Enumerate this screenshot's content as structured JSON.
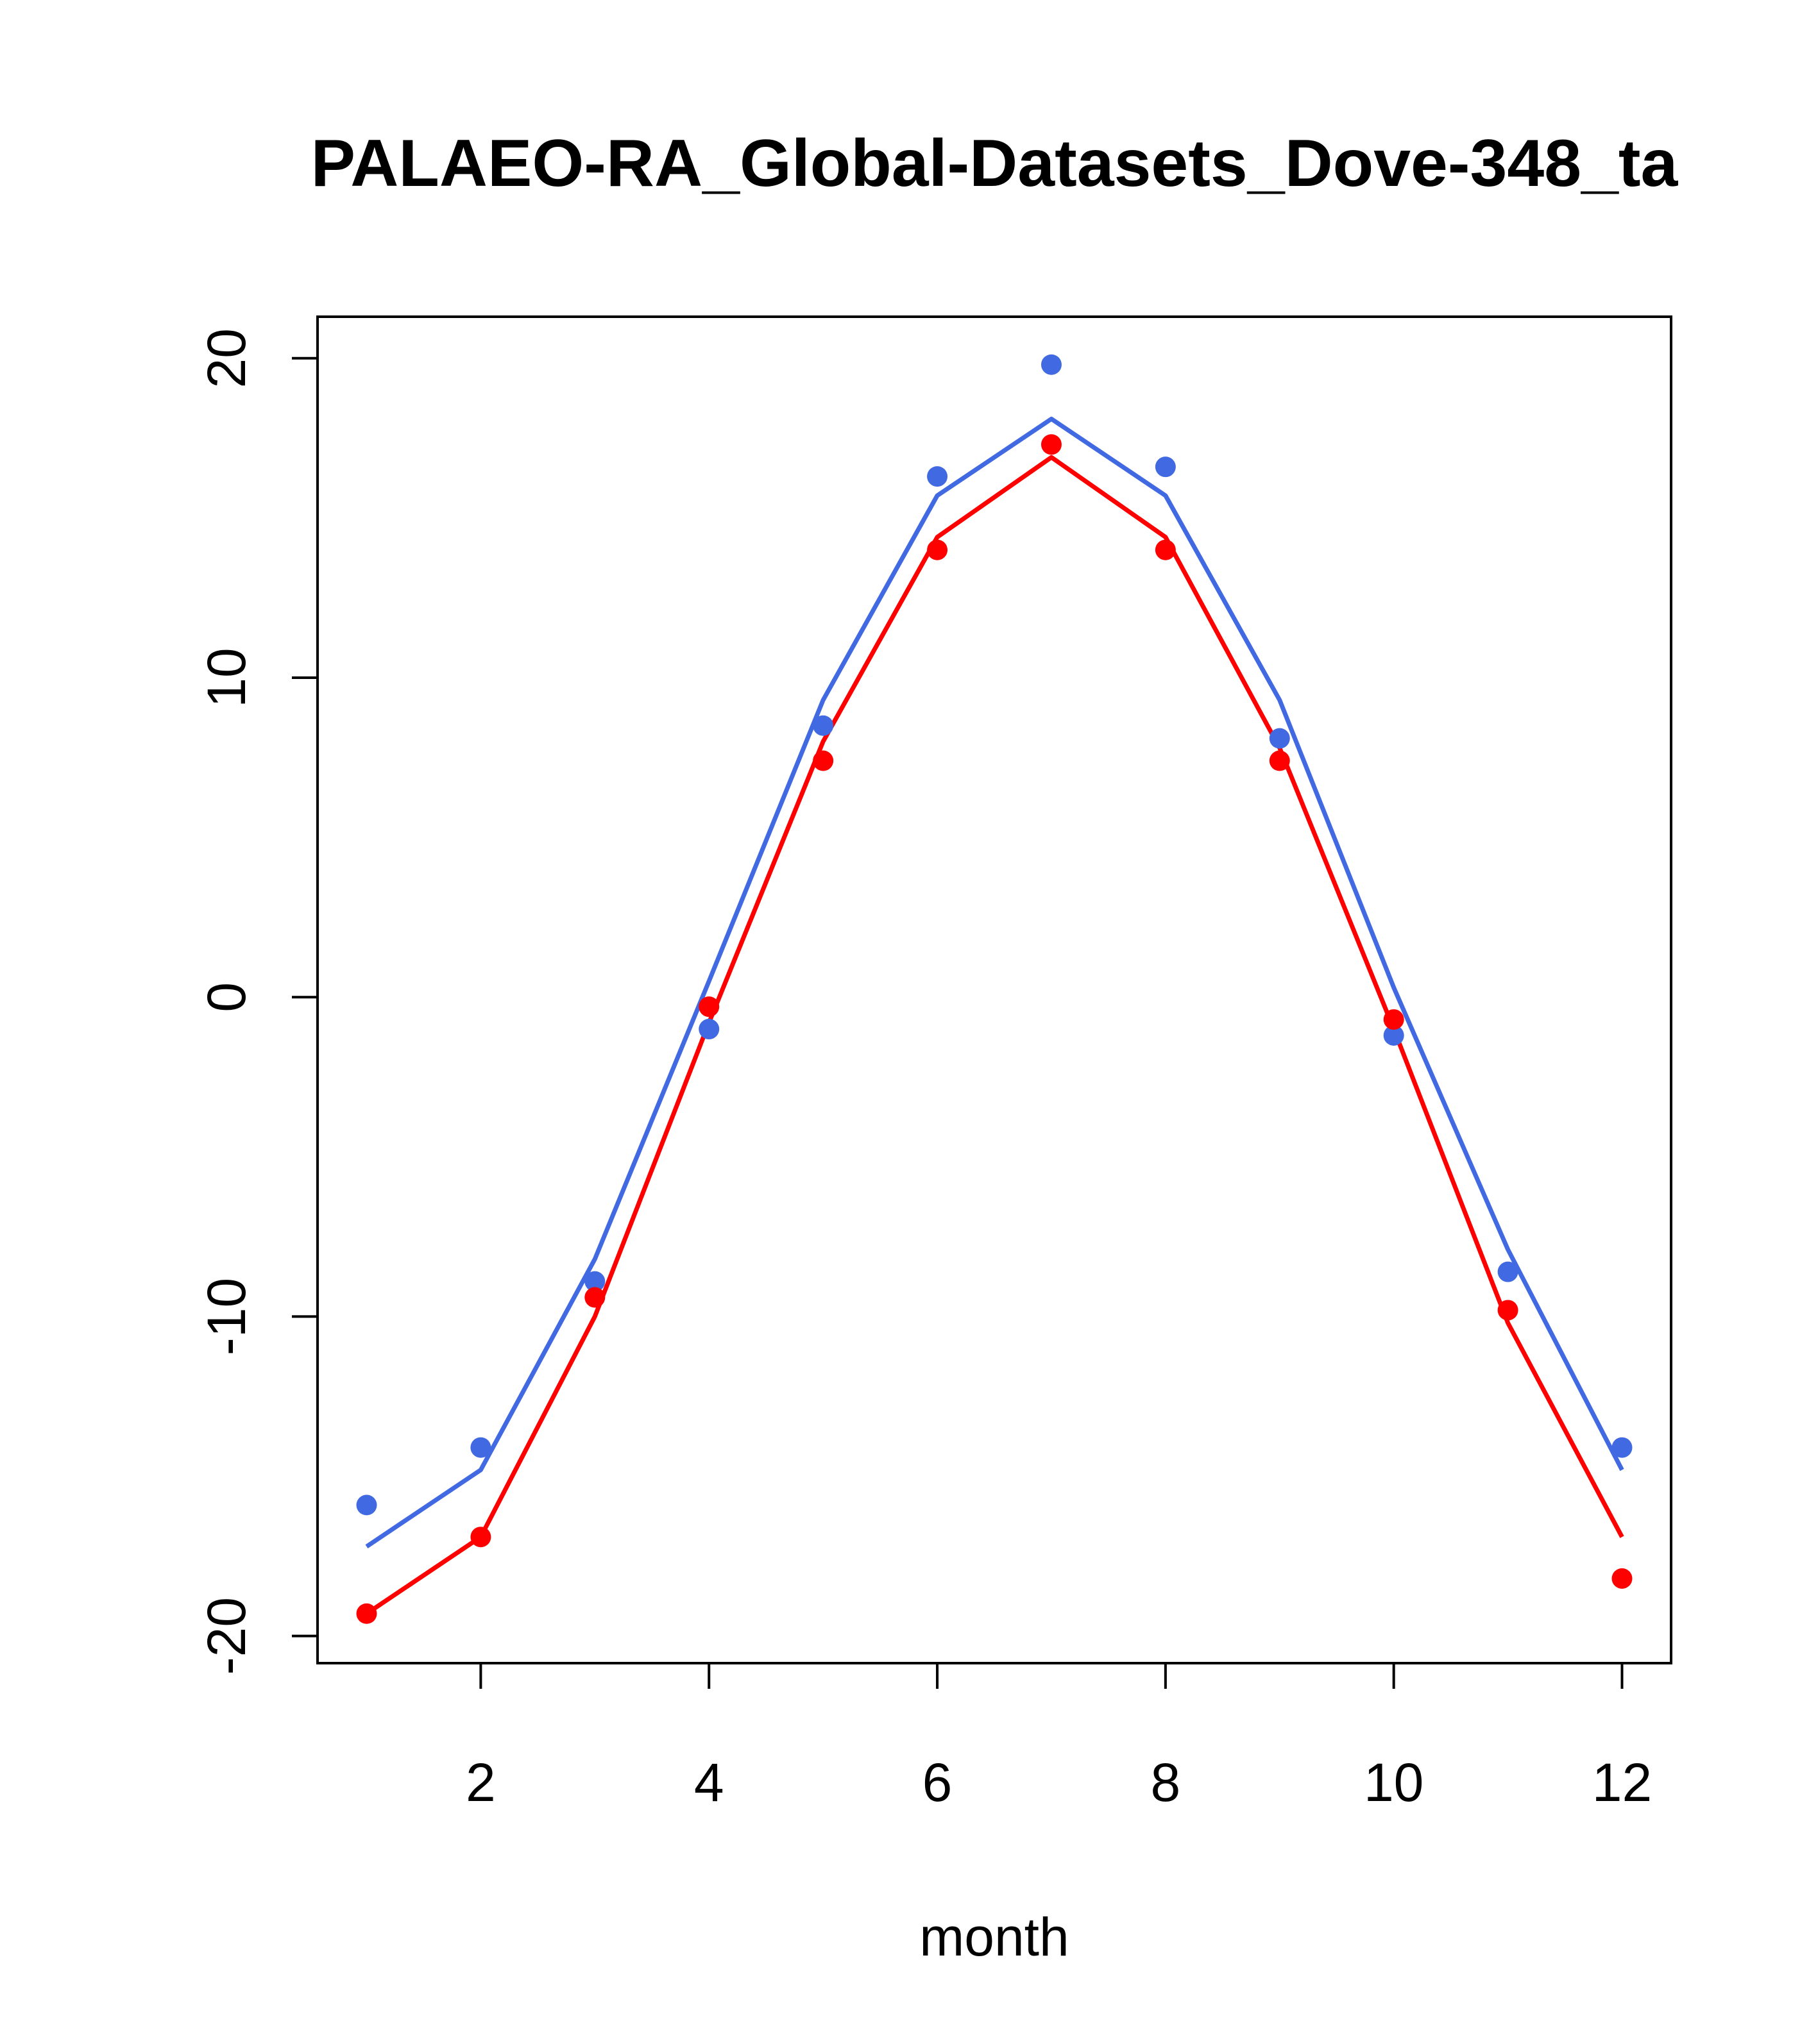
{
  "chart_data": {
    "type": "line",
    "title": "PALAEO-RA_Global-Datasets_Dove-348_ta",
    "xlabel": "month",
    "ylabel": "",
    "xlim": [
      0.57,
      12.43
    ],
    "ylim": [
      -20.85,
      21.3
    ],
    "x_ticks": [
      2,
      4,
      6,
      8,
      10,
      12
    ],
    "y_ticks": [
      -20,
      -10,
      0,
      10,
      20
    ],
    "grid": false,
    "legend": "none",
    "x": [
      1,
      2,
      3,
      4,
      5,
      6,
      7,
      8,
      9,
      10,
      11,
      12
    ],
    "series": [
      {
        "color": "#4169E1",
        "line": [
          -17.2,
          -14.8,
          -8.2,
          0.5,
          9.3,
          15.7,
          18.1,
          15.7,
          9.3,
          0.3,
          -7.9,
          -14.8
        ],
        "points": [
          -15.9,
          -14.1,
          -8.9,
          -1.0,
          8.5,
          16.3,
          19.8,
          16.6,
          8.1,
          -1.2,
          -8.6,
          -14.1
        ]
      },
      {
        "color": "#FF0000",
        "line": [
          -19.3,
          -16.9,
          -10.0,
          -0.8,
          8.0,
          14.4,
          16.9,
          14.4,
          7.8,
          -1.0,
          -10.2,
          -16.9
        ],
        "points": [
          -19.3,
          -16.9,
          -9.4,
          -0.3,
          7.4,
          14.0,
          17.3,
          14.0,
          7.4,
          -0.7,
          -9.8,
          -18.2
        ]
      }
    ]
  }
}
